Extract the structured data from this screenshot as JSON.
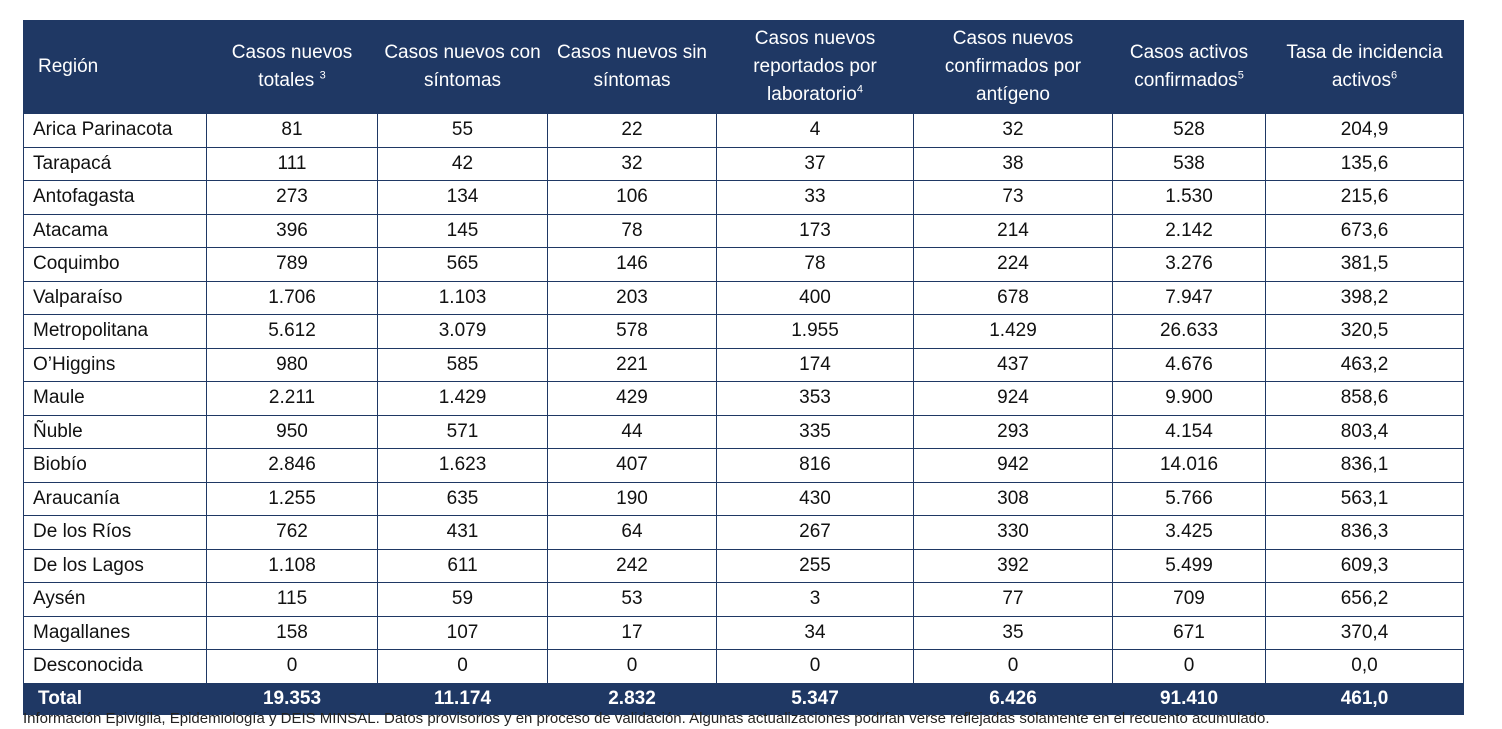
{
  "table": {
    "headers": [
      {
        "label": "Región",
        "sup": ""
      },
      {
        "label": "Casos nuevos totales",
        "sup": "3"
      },
      {
        "label": "Casos nuevos con síntomas",
        "sup": ""
      },
      {
        "label": "Casos nuevos sin síntomas",
        "sup": ""
      },
      {
        "label": "Casos nuevos reportados por laboratorio",
        "sup": "4"
      },
      {
        "label": "Casos nuevos confirmados por antígeno",
        "sup": ""
      },
      {
        "label": "Casos activos confirmados",
        "sup": "5"
      },
      {
        "label": "Tasa de incidencia activos",
        "sup": "6"
      }
    ],
    "rows": [
      [
        "Arica Parinacota",
        "81",
        "55",
        "22",
        "4",
        "32",
        "528",
        "204,9"
      ],
      [
        "Tarapacá",
        "111",
        "42",
        "32",
        "37",
        "38",
        "538",
        "135,6"
      ],
      [
        "Antofagasta",
        "273",
        "134",
        "106",
        "33",
        "73",
        "1.530",
        "215,6"
      ],
      [
        "Atacama",
        "396",
        "145",
        "78",
        "173",
        "214",
        "2.142",
        "673,6"
      ],
      [
        "Coquimbo",
        "789",
        "565",
        "146",
        "78",
        "224",
        "3.276",
        "381,5"
      ],
      [
        "Valparaíso",
        "1.706",
        "1.103",
        "203",
        "400",
        "678",
        "7.947",
        "398,2"
      ],
      [
        "Metropolitana",
        "5.612",
        "3.079",
        "578",
        "1.955",
        "1.429",
        "26.633",
        "320,5"
      ],
      [
        "O’Higgins",
        "980",
        "585",
        "221",
        "174",
        "437",
        "4.676",
        "463,2"
      ],
      [
        "Maule",
        "2.211",
        "1.429",
        "429",
        "353",
        "924",
        "9.900",
        "858,6"
      ],
      [
        "Ñuble",
        "950",
        "571",
        "44",
        "335",
        "293",
        "4.154",
        "803,4"
      ],
      [
        "Biobío",
        "2.846",
        "1.623",
        "407",
        "816",
        "942",
        "14.016",
        "836,1"
      ],
      [
        "Araucanía",
        "1.255",
        "635",
        "190",
        "430",
        "308",
        "5.766",
        "563,1"
      ],
      [
        "De los Ríos",
        "762",
        "431",
        "64",
        "267",
        "330",
        "3.425",
        "836,3"
      ],
      [
        "De los Lagos",
        "1.108",
        "611",
        "242",
        "255",
        "392",
        "5.499",
        "609,3"
      ],
      [
        "Aysén",
        "115",
        "59",
        "53",
        "3",
        "77",
        "709",
        "656,2"
      ],
      [
        "Magallanes",
        "158",
        "107",
        "17",
        "34",
        "35",
        "671",
        "370,4"
      ],
      [
        "Desconocida",
        "0",
        "0",
        "0",
        "0",
        "0",
        "0",
        "0,0"
      ]
    ],
    "total": [
      "Total",
      "19.353",
      "11.174",
      "2.832",
      "5.347",
      "6.426",
      "91.410",
      "461,0"
    ]
  },
  "footnote": "Información Epivigila, Epidemiología y DEIS MINSAL. Datos provisorios y en proceso de validación. Algunas actualizaciones podrían verse reflejadas solamente en el recuento acumulado."
}
